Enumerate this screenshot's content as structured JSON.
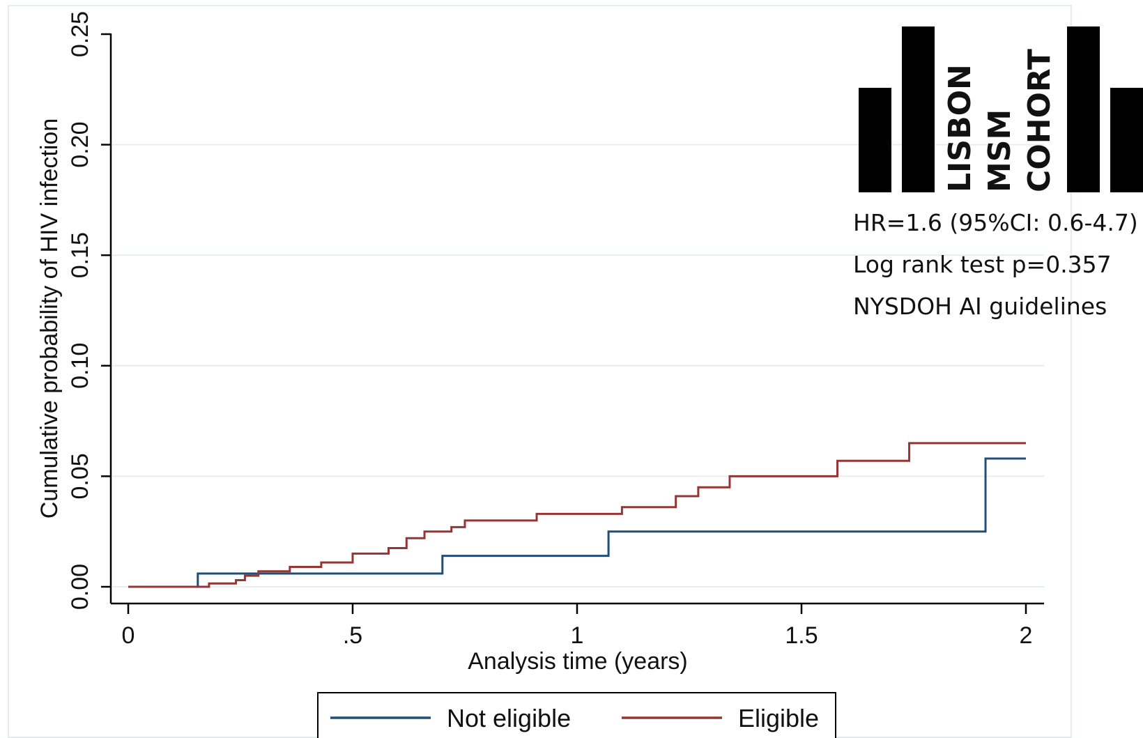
{
  "chart_data": {
    "type": "line",
    "step": true,
    "xlabel": "Analysis time (years)",
    "ylabel": "Cumulative probability of HIV infection",
    "xlim": [
      0,
      2
    ],
    "ylim": [
      0,
      0.25
    ],
    "x_ticks": [
      0,
      0.5,
      1,
      1.5,
      2
    ],
    "x_tick_labels": [
      "0",
      ".5",
      "1",
      "1.5",
      "2"
    ],
    "y_ticks": [
      0,
      0.05,
      0.1,
      0.15,
      0.2,
      0.25
    ],
    "y_tick_labels": [
      "0.00",
      "0.05",
      "0.10",
      "0.15",
      "0.20",
      "0.25"
    ],
    "grid": true,
    "legend_position": "bottom",
    "series": [
      {
        "name": "Not eligible",
        "color": "#1f4e79",
        "x": [
          0,
          0.155,
          0.7,
          1.07,
          1.91,
          2.0
        ],
        "y": [
          0,
          0.006,
          0.014,
          0.025,
          0.058,
          0.058
        ]
      },
      {
        "name": "Eligible",
        "color": "#943634",
        "x": [
          0,
          0.18,
          0.24,
          0.26,
          0.29,
          0.36,
          0.43,
          0.5,
          0.58,
          0.62,
          0.66,
          0.72,
          0.75,
          0.91,
          1.1,
          1.22,
          1.27,
          1.34,
          1.58,
          1.74,
          2.0
        ],
        "y": [
          0,
          0.0015,
          0.003,
          0.005,
          0.007,
          0.009,
          0.011,
          0.015,
          0.0175,
          0.022,
          0.025,
          0.027,
          0.03,
          0.033,
          0.036,
          0.041,
          0.045,
          0.05,
          0.057,
          0.065,
          0.065
        ]
      }
    ],
    "annotations": [
      "HR=1.6 (95%CI: 0.6-4.7)",
      "Log rank test p=0.357",
      "NYSDOH AI guidelines"
    ],
    "logo": {
      "lines": [
        "LISBON",
        "MSM",
        "COHORT"
      ]
    }
  }
}
